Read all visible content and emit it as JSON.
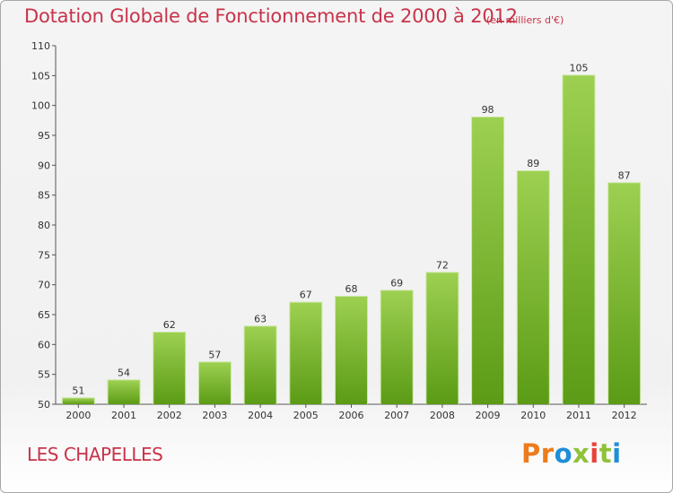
{
  "chart_data": {
    "type": "bar",
    "title": "Dotation Globale de Fonctionnement de 2000 à 2012",
    "unit_label": "(en milliers d'€)",
    "categories": [
      "2000",
      "2001",
      "2002",
      "2003",
      "2004",
      "2005",
      "2006",
      "2007",
      "2008",
      "2009",
      "2010",
      "2011",
      "2012"
    ],
    "values": [
      51,
      54,
      62,
      57,
      63,
      67,
      68,
      69,
      72,
      98,
      89,
      105,
      87
    ],
    "ylim": [
      50,
      110
    ],
    "yticks": [
      50,
      55,
      60,
      65,
      70,
      75,
      80,
      85,
      90,
      95,
      100,
      105,
      110
    ],
    "xlabel": "",
    "ylabel": "",
    "grid": false,
    "bar_colors": {
      "light": "#9dd051",
      "dark": "#5b9b15"
    }
  },
  "commune_name": "LES CHAPELLES",
  "logo": {
    "letters": [
      "P",
      "r",
      "o",
      "x",
      "i",
      "t",
      "i"
    ],
    "colors": [
      "#ec7c1c",
      "#ec7c1c",
      "#1e8fd6",
      "#8fc23a",
      "#e8413c",
      "#8fc23a",
      "#1e8fd6"
    ]
  },
  "colors": {
    "accent": "#c8334a"
  }
}
